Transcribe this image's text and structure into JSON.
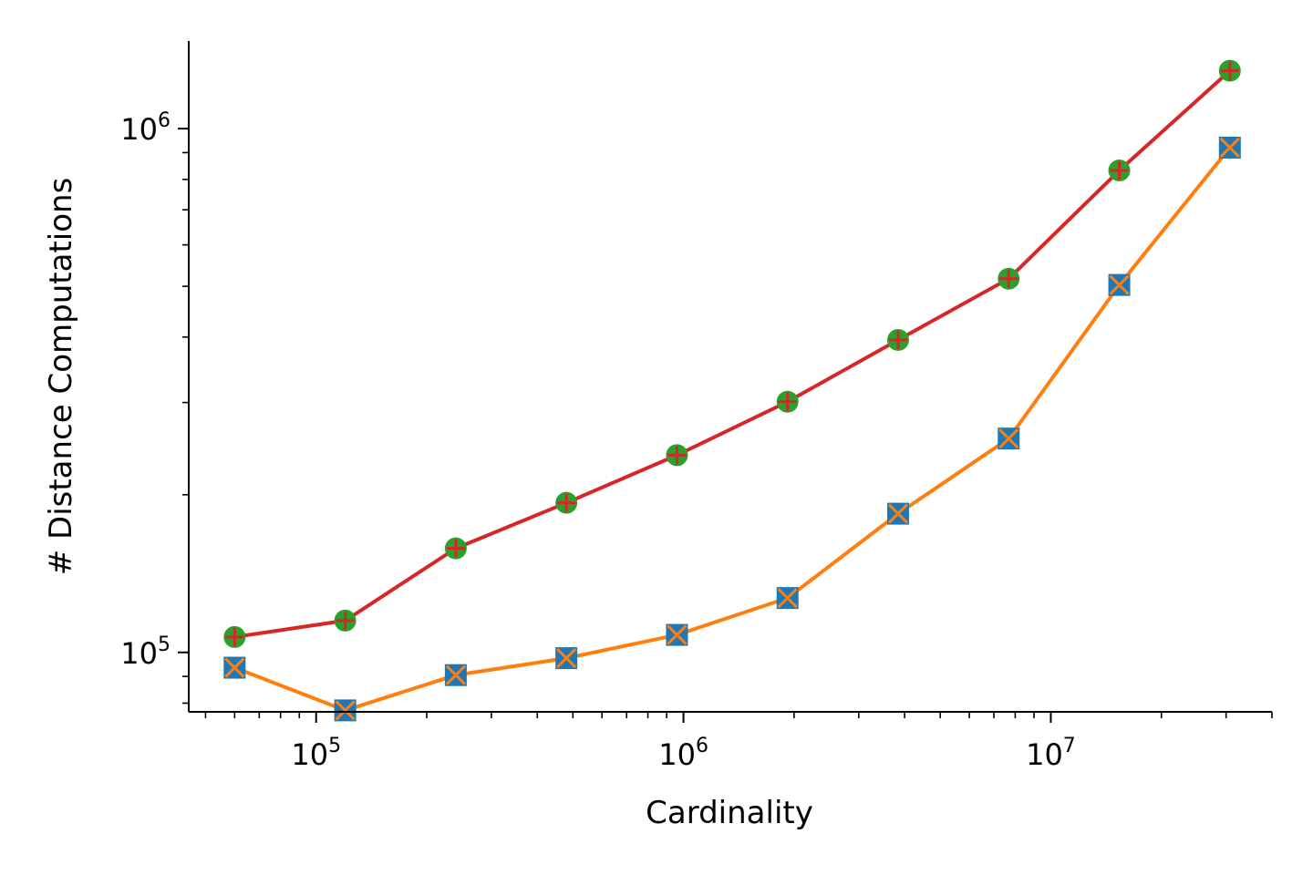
{
  "chart_data": {
    "type": "line",
    "xlabel": "Cardinality",
    "ylabel": "# Distance Computations",
    "xscale": "log",
    "yscale": "log",
    "xlim": [
      45000,
      40000000
    ],
    "ylim": [
      77000,
      1470000
    ],
    "grid": false,
    "x": [
      60000,
      120000,
      240000,
      480000,
      960000,
      1920000,
      3840000,
      7680000,
      15360000,
      30720000
    ],
    "x_ticks": [
      {
        "value": 100000,
        "base": "10",
        "exp": "5"
      },
      {
        "value": 1000000,
        "base": "10",
        "exp": "6"
      },
      {
        "value": 10000000,
        "base": "10",
        "exp": "7"
      }
    ],
    "y_ticks": [
      {
        "value": 100000,
        "base": "10",
        "exp": "5"
      },
      {
        "value": 1000000,
        "base": "10",
        "exp": "6"
      }
    ],
    "series": [
      {
        "values": [
          107000,
          115000,
          158000,
          193000,
          238000,
          301000,
          395000,
          517000,
          832000,
          1290000
        ],
        "line_color": "#d62728",
        "marker": "circle",
        "marker_color": "#2ca02c",
        "marker2": "plus",
        "marker2_color": "#d62728"
      },
      {
        "values": [
          93500,
          77500,
          90500,
          97500,
          108000,
          127000,
          184000,
          256000,
          503000,
          920000
        ],
        "line_color": "#ff7f0e",
        "marker": "square",
        "marker_color": "#1f77b4",
        "marker2": "x",
        "marker2_color": "#ff7f0e"
      }
    ]
  }
}
